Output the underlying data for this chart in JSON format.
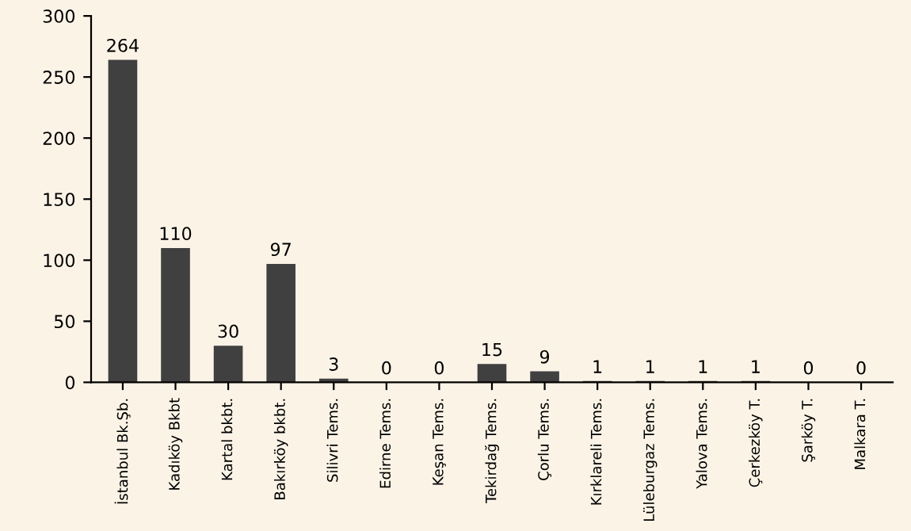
{
  "chart_data": {
    "type": "bar",
    "categories": [
      "İstanbul Bk.Şb.",
      "Kadıköy Bkbt",
      "Kartal bkbt.",
      "Bakırköy bkbt.",
      "Silivri Tems.",
      "Edirne Tems.",
      "Keşan Tems.",
      "Tekirdağ Tems.",
      "Çorlu Tems.",
      "Kırklareli Tems.",
      "Lüleburgaz Tems.",
      "Yalova Tems.",
      "Çerkezköy T.",
      "Şarköy T.",
      "Malkara T."
    ],
    "values": [
      264,
      110,
      30,
      97,
      3,
      0,
      0,
      15,
      9,
      1,
      1,
      1,
      1,
      0,
      0
    ],
    "color": "#404040",
    "ylim": [
      0,
      300
    ],
    "yticks": [
      0,
      50,
      100,
      150,
      200,
      250,
      300
    ],
    "data_labels": true
  }
}
